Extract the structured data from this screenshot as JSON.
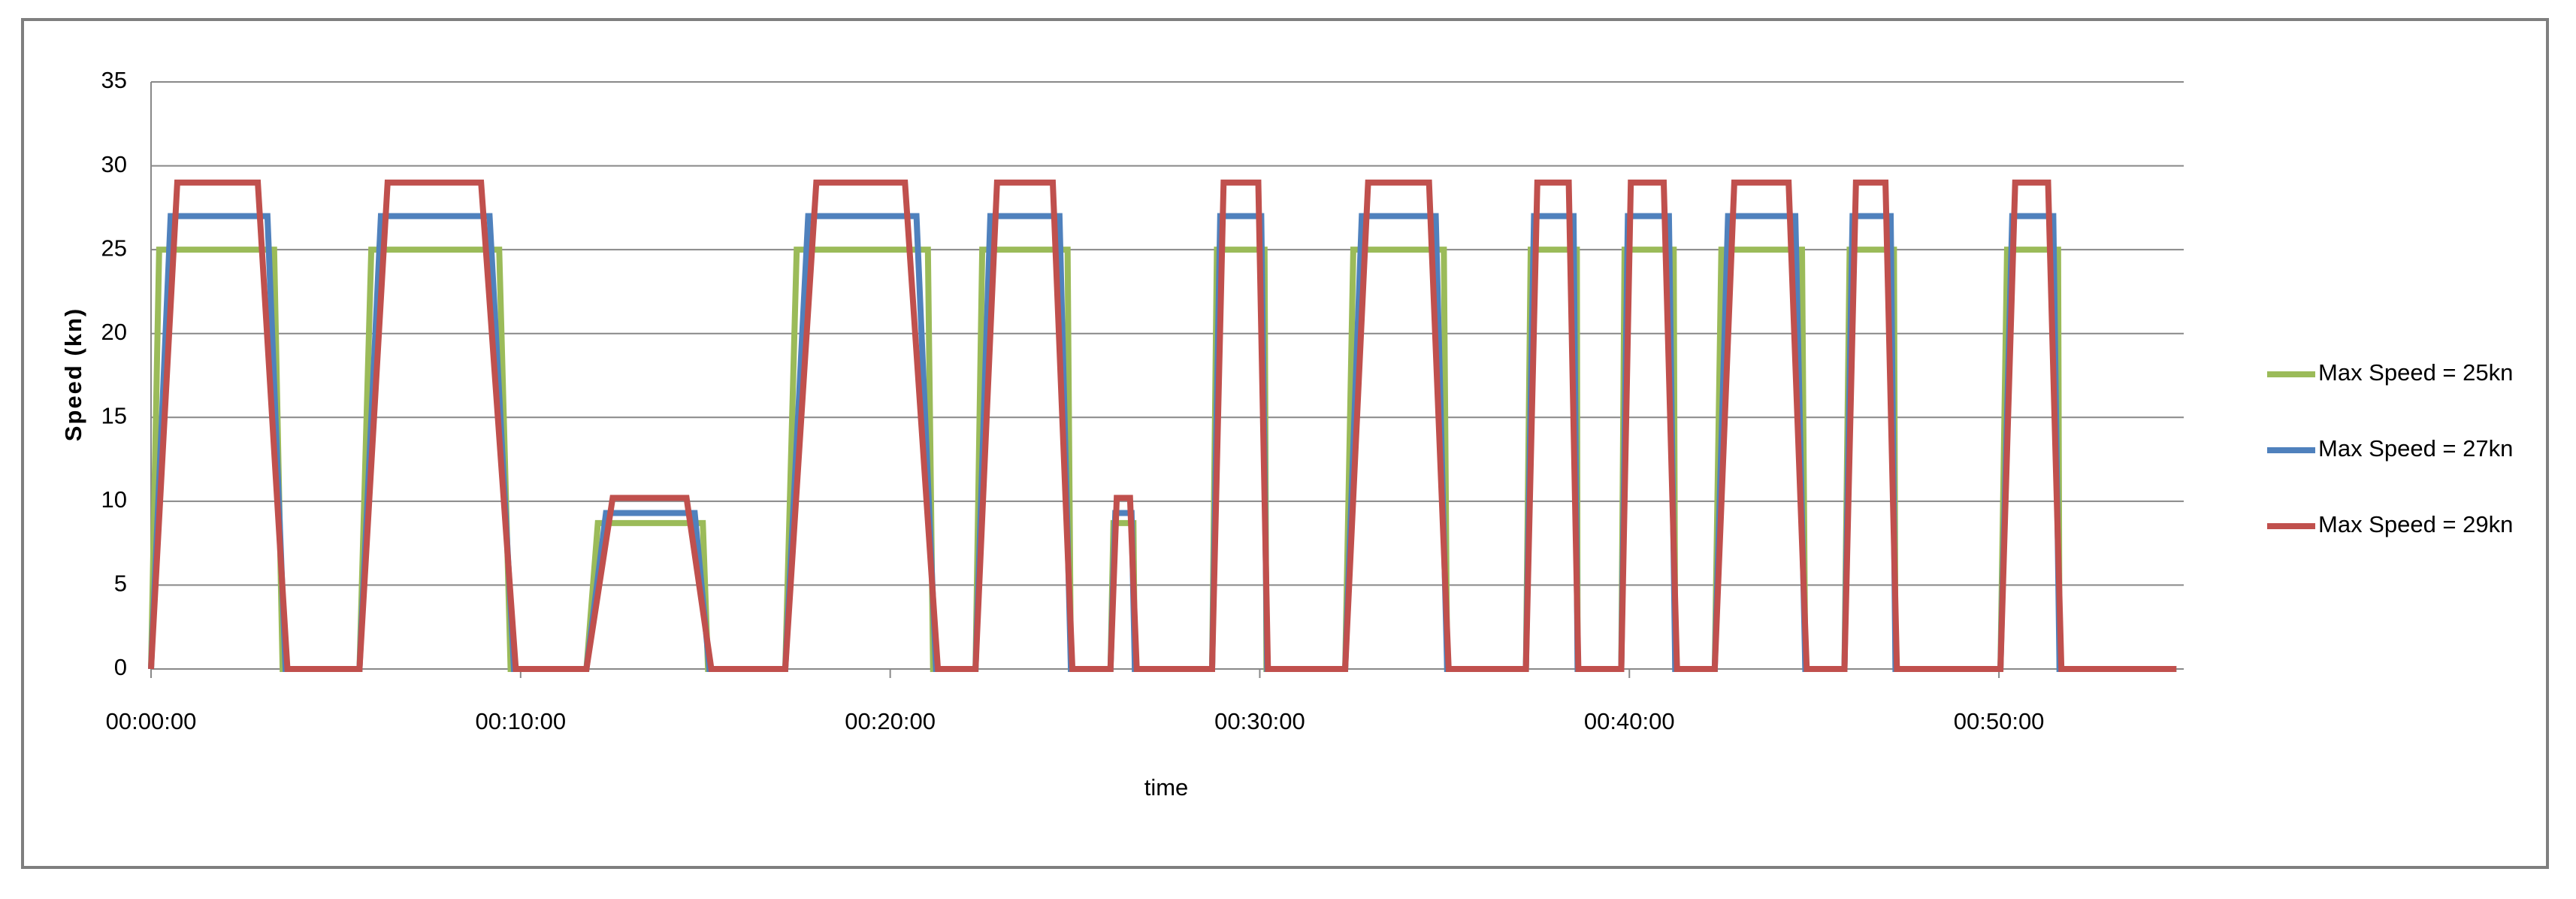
{
  "chart_data": {
    "type": "line",
    "x_label": "time",
    "y_label": "Speed (kn)",
    "xlim": [
      0,
      55
    ],
    "ylim": [
      0,
      35
    ],
    "xticks": [
      {
        "value": 0,
        "label": "00:00:00"
      },
      {
        "value": 10,
        "label": "00:10:00"
      },
      {
        "value": 20,
        "label": "00:20:00"
      },
      {
        "value": 30,
        "label": "00:30:00"
      },
      {
        "value": 40,
        "label": "00:40:00"
      },
      {
        "value": 50,
        "label": "00:50:00"
      }
    ],
    "yticks": [
      0,
      5,
      10,
      15,
      20,
      25,
      30,
      35
    ],
    "grid": true,
    "legend": "right",
    "series": [
      {
        "name": "Max Speed = 25kn",
        "color": "#9bbb59",
        "x": [
          0,
          0.22,
          3.33,
          3.56,
          5.64,
          5.96,
          9.42,
          9.73,
          11.78,
          12.09,
          14.93,
          15.07,
          17.16,
          17.47,
          21.02,
          21.16,
          22.31,
          22.49,
          24.8,
          24.89,
          25.96,
          26.04,
          26.58,
          26.62,
          28.71,
          28.84,
          30.13,
          30.18,
          32.31,
          32.53,
          34.98,
          35.07,
          37.2,
          37.33,
          38.58,
          38.6,
          39.78,
          39.87,
          41.2,
          41.24,
          42.31,
          42.49,
          44.67,
          44.76,
          45.82,
          45.96,
          47.16,
          47.2,
          50.04,
          50.22,
          51.6,
          51.64,
          54.8
        ],
        "values": [
          0,
          25,
          25,
          0,
          0,
          25,
          25,
          0,
          0,
          8.7,
          8.7,
          0,
          0,
          25,
          25,
          0,
          0,
          25,
          25,
          0,
          0,
          8.7,
          8.7,
          0,
          0,
          25,
          25,
          0,
          0,
          25,
          25,
          0,
          0,
          25,
          25,
          0,
          0,
          25,
          25,
          0,
          0,
          25,
          25,
          0,
          0,
          25,
          25,
          0,
          0,
          25,
          25,
          0,
          0
        ]
      },
      {
        "name": "Max Speed = 27kn",
        "color": "#4f81bd",
        "x": [
          0,
          0.53,
          3.15,
          3.64,
          5.64,
          6.22,
          9.16,
          9.82,
          11.78,
          12.31,
          14.71,
          15.11,
          17.16,
          17.78,
          20.71,
          21.24,
          22.31,
          22.71,
          24.58,
          24.89,
          25.96,
          26.09,
          26.53,
          26.62,
          28.71,
          28.93,
          30.04,
          30.2,
          32.31,
          32.76,
          34.76,
          35.07,
          37.2,
          37.42,
          38.49,
          38.6,
          39.78,
          39.96,
          41.07,
          41.24,
          42.31,
          42.67,
          44.49,
          44.76,
          45.82,
          46.04,
          47.07,
          47.2,
          50.04,
          50.36,
          51.47,
          51.64,
          54.8
        ],
        "values": [
          0,
          27,
          27,
          0,
          0,
          27,
          27,
          0,
          0,
          9.3,
          9.3,
          0,
          0,
          27,
          27,
          0,
          0,
          27,
          27,
          0,
          0,
          9.3,
          9.3,
          0,
          0,
          27,
          27,
          0,
          0,
          27,
          27,
          0,
          0,
          27,
          27,
          0,
          0,
          27,
          27,
          0,
          0,
          27,
          27,
          0,
          0,
          27,
          27,
          0,
          0,
          27,
          27,
          0,
          0
        ]
      },
      {
        "name": "Max Speed = 29kn",
        "color": "#c0504d",
        "x": [
          0,
          0.71,
          2.89,
          3.69,
          5.64,
          6.4,
          8.93,
          9.87,
          11.78,
          12.49,
          14.49,
          15.16,
          17.16,
          18,
          20.4,
          21.29,
          22.31,
          22.89,
          24.4,
          24.93,
          25.96,
          26.13,
          26.49,
          26.67,
          28.71,
          29.02,
          29.96,
          30.22,
          32.31,
          32.93,
          34.58,
          35.11,
          37.2,
          37.51,
          38.36,
          38.62,
          39.78,
          40.04,
          40.93,
          41.29,
          42.31,
          42.84,
          44.31,
          44.8,
          45.82,
          46.13,
          46.93,
          47.24,
          50.04,
          50.44,
          51.33,
          51.69,
          54.8
        ],
        "values": [
          0,
          29,
          29,
          0,
          0,
          29,
          29,
          0,
          0,
          10.2,
          10.2,
          0,
          0,
          29,
          29,
          0,
          0,
          29,
          29,
          0,
          0,
          10.2,
          10.2,
          0,
          0,
          29,
          29,
          0,
          0,
          29,
          29,
          0,
          0,
          29,
          29,
          0,
          0,
          29,
          29,
          0,
          0,
          29,
          29,
          0,
          0,
          29,
          29,
          0,
          0,
          29,
          29,
          0,
          0
        ]
      }
    ]
  }
}
